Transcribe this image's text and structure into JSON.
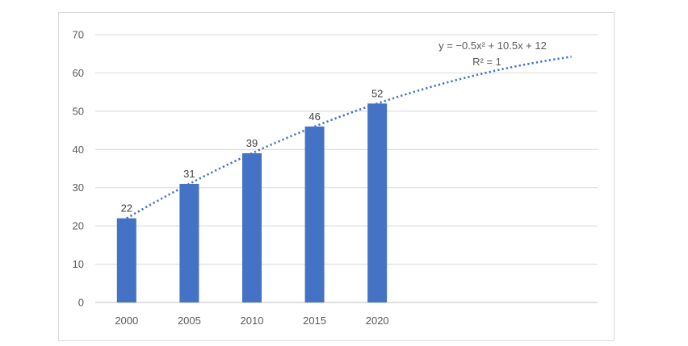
{
  "chart_data": {
    "type": "bar",
    "categories": [
      "2000",
      "2005",
      "2010",
      "2015",
      "2020"
    ],
    "values": [
      22,
      31,
      39,
      46,
      52
    ],
    "ylim": [
      0,
      70
    ],
    "yticks": [
      0,
      10,
      20,
      30,
      40,
      50,
      60,
      70
    ],
    "grid": true,
    "bar_color": "#4472C4",
    "trendline": {
      "type": "polynomial",
      "order": 2,
      "style": "dotted",
      "color": "#4472C4",
      "equation": "y = −0.5x² + 10.5x + 12",
      "r_squared": "R² = 1",
      "coefficients": {
        "a": -0.5,
        "b": 10.5,
        "c": 12
      },
      "x_start": 1,
      "x_end": 8.1
    }
  }
}
